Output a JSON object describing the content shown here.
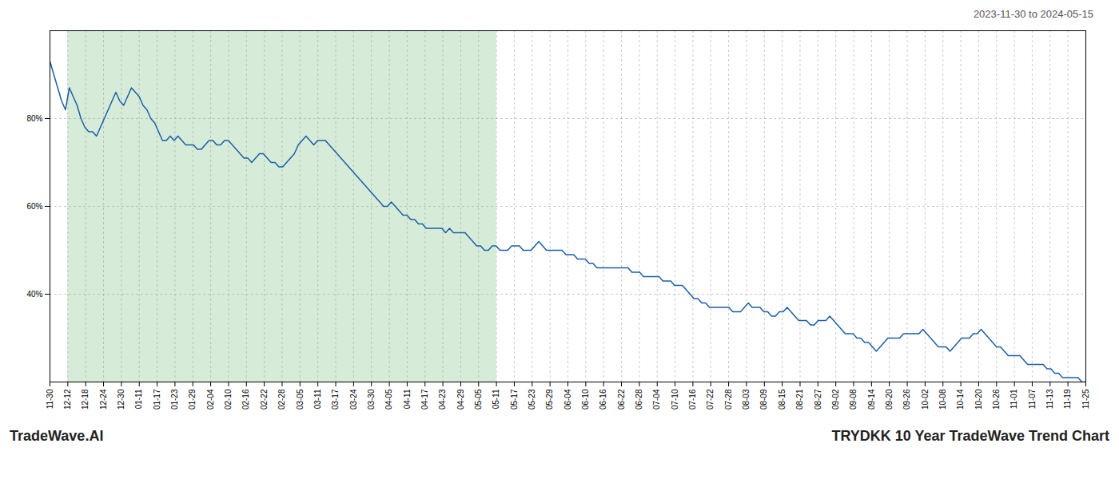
{
  "chart_data": {
    "type": "line",
    "title": "TRYDKK 10 Year TradeWave Trend Chart",
    "subtitle": "2023-11-30 to 2024-05-15",
    "caption": "TradeWave.AI",
    "color": "#1a5fa8",
    "grid": true,
    "ylim": [
      20,
      100
    ],
    "yticks": [
      {
        "value": 40,
        "label": "40%"
      },
      {
        "value": 60,
        "label": "60%"
      },
      {
        "value": 80,
        "label": "80%"
      }
    ],
    "xlim": [
      0,
      267
    ],
    "xticks": [
      {
        "value": 0,
        "label": "11-30"
      },
      {
        "value": 4.6034,
        "label": "12-12"
      },
      {
        "value": 9.2069,
        "label": "12-18"
      },
      {
        "value": 13.8103,
        "label": "12-24"
      },
      {
        "value": 18.4138,
        "label": "12-30"
      },
      {
        "value": 23.0172,
        "label": "01-11"
      },
      {
        "value": 27.6207,
        "label": "01-17"
      },
      {
        "value": 32.2241,
        "label": "01-23"
      },
      {
        "value": 36.8276,
        "label": "01-29"
      },
      {
        "value": 41.431,
        "label": "02-04"
      },
      {
        "value": 46.0345,
        "label": "02-10"
      },
      {
        "value": 50.6379,
        "label": "02-16"
      },
      {
        "value": 55.2414,
        "label": "02-22"
      },
      {
        "value": 59.8448,
        "label": "02-28"
      },
      {
        "value": 64.4483,
        "label": "03-05"
      },
      {
        "value": 69.0517,
        "label": "03-11"
      },
      {
        "value": 73.6552,
        "label": "03-17"
      },
      {
        "value": 78.2586,
        "label": "03-24"
      },
      {
        "value": 82.8621,
        "label": "03-30"
      },
      {
        "value": 87.4655,
        "label": "04-05"
      },
      {
        "value": 92.069,
        "label": "04-11"
      },
      {
        "value": 96.6724,
        "label": "04-17"
      },
      {
        "value": 101.2759,
        "label": "04-23"
      },
      {
        "value": 105.8793,
        "label": "04-29"
      },
      {
        "value": 110.4828,
        "label": "05-05"
      },
      {
        "value": 115.0862,
        "label": "05-11"
      },
      {
        "value": 119.6897,
        "label": "05-17"
      },
      {
        "value": 124.2931,
        "label": "05-23"
      },
      {
        "value": 128.8966,
        "label": "05-29"
      },
      {
        "value": 133.5,
        "label": "06-04"
      },
      {
        "value": 138.1034,
        "label": "06-10"
      },
      {
        "value": 142.7069,
        "label": "06-16"
      },
      {
        "value": 147.3103,
        "label": "06-22"
      },
      {
        "value": 151.9138,
        "label": "06-28"
      },
      {
        "value": 156.5172,
        "label": "07-04"
      },
      {
        "value": 161.1207,
        "label": "07-10"
      },
      {
        "value": 165.7241,
        "label": "07-16"
      },
      {
        "value": 170.3276,
        "label": "07-22"
      },
      {
        "value": 174.931,
        "label": "07-28"
      },
      {
        "value": 179.5345,
        "label": "08-03"
      },
      {
        "value": 184.1379,
        "label": "08-09"
      },
      {
        "value": 188.7414,
        "label": "08-15"
      },
      {
        "value": 193.3448,
        "label": "08-21"
      },
      {
        "value": 197.9483,
        "label": "08-27"
      },
      {
        "value": 202.5517,
        "label": "09-02"
      },
      {
        "value": 207.1552,
        "label": "09-08"
      },
      {
        "value": 211.7586,
        "label": "09-14"
      },
      {
        "value": 216.3621,
        "label": "09-20"
      },
      {
        "value": 220.9655,
        "label": "09-26"
      },
      {
        "value": 225.569,
        "label": "10-02"
      },
      {
        "value": 230.1724,
        "label": "10-08"
      },
      {
        "value": 234.7759,
        "label": "10-14"
      },
      {
        "value": 239.3793,
        "label": "10-20"
      },
      {
        "value": 243.9828,
        "label": "10-26"
      },
      {
        "value": 248.5862,
        "label": "11-01"
      },
      {
        "value": 253.1897,
        "label": "11-07"
      },
      {
        "value": 257.7931,
        "label": "11-13"
      },
      {
        "value": 262.3966,
        "label": "11-19"
      },
      {
        "value": 267,
        "label": "11-25"
      }
    ],
    "shaded": {
      "x": [
        4.6034,
        115.0862
      ],
      "color": "#d6ecd8"
    },
    "x": [
      0,
      1,
      2,
      3,
      4,
      5,
      6,
      7,
      8,
      9,
      10,
      11,
      12,
      13,
      14,
      15,
      16,
      17,
      18,
      19,
      20,
      21,
      22,
      23,
      24,
      25,
      26,
      27,
      28,
      29,
      30,
      31,
      32,
      33,
      34,
      35,
      36,
      37,
      38,
      39,
      40,
      41,
      42,
      43,
      44,
      45,
      46,
      47,
      48,
      49,
      50,
      51,
      52,
      53,
      54,
      55,
      56,
      57,
      58,
      59,
      60,
      61,
      62,
      63,
      64,
      65,
      66,
      67,
      68,
      69,
      70,
      71,
      72,
      73,
      74,
      75,
      76,
      77,
      78,
      79,
      80,
      81,
      82,
      83,
      84,
      85,
      86,
      87,
      88,
      89,
      90,
      91,
      92,
      93,
      94,
      95,
      96,
      97,
      98,
      99,
      100,
      101,
      102,
      103,
      104,
      105,
      106,
      107,
      108,
      109,
      110,
      111,
      112,
      113,
      114,
      115,
      116,
      117,
      118,
      119,
      120,
      121,
      122,
      123,
      124,
      125,
      126,
      127,
      128,
      129,
      130,
      131,
      132,
      133,
      134,
      135,
      136,
      137,
      138,
      139,
      140,
      141,
      142,
      143,
      144,
      145,
      146,
      147,
      148,
      149,
      150,
      151,
      152,
      153,
      154,
      155,
      156,
      157,
      158,
      159,
      160,
      161,
      162,
      163,
      164,
      165,
      166,
      167,
      168,
      169,
      170,
      171,
      172,
      173,
      174,
      175,
      176,
      177,
      178,
      179,
      180,
      181,
      182,
      183,
      184,
      185,
      186,
      187,
      188,
      189,
      190,
      191,
      192,
      193,
      194,
      195,
      196,
      197,
      198,
      199,
      200,
      201,
      202,
      203,
      204,
      205,
      206,
      207,
      208,
      209,
      210,
      211,
      212,
      213,
      214,
      215,
      216,
      217,
      218,
      219,
      220,
      221,
      222,
      223,
      224,
      225,
      226,
      227,
      228,
      229,
      230,
      231,
      232,
      233,
      234,
      235,
      236,
      237,
      238,
      239,
      240,
      241,
      242,
      243,
      244,
      245,
      246,
      247,
      248,
      249,
      250,
      251,
      252,
      253,
      254,
      255,
      256,
      257,
      258,
      259,
      260,
      261,
      262,
      263,
      264,
      265,
      266,
      267
    ],
    "values": [
      93,
      90,
      87,
      84,
      82,
      87,
      85,
      83,
      80,
      78,
      77,
      77,
      76,
      78,
      80,
      82,
      84,
      86,
      84,
      83,
      85,
      87,
      86,
      85,
      83,
      82,
      80,
      79,
      77,
      75,
      75,
      76,
      75,
      76,
      75,
      74,
      74,
      74,
      73,
      73,
      74,
      75,
      75,
      74,
      74,
      75,
      75,
      74,
      73,
      72,
      71,
      71,
      70,
      71,
      72,
      72,
      71,
      70,
      70,
      69,
      69,
      70,
      71,
      72,
      74,
      75,
      76,
      75,
      74,
      75,
      75,
      75,
      74,
      73,
      72,
      71,
      70,
      69,
      68,
      67,
      66,
      65,
      64,
      63,
      62,
      61,
      60,
      60,
      61,
      60,
      59,
      58,
      58,
      57,
      57,
      56,
      56,
      55,
      55,
      55,
      55,
      55,
      54,
      55,
      54,
      54,
      54,
      54,
      53,
      52,
      51,
      51,
      50,
      50,
      51,
      51,
      50,
      50,
      50,
      51,
      51,
      51,
      50,
      50,
      50,
      51,
      52,
      51,
      50,
      50,
      50,
      50,
      50,
      49,
      49,
      49,
      48,
      48,
      48,
      47,
      47,
      46,
      46,
      46,
      46,
      46,
      46,
      46,
      46,
      46,
      45,
      45,
      45,
      44,
      44,
      44,
      44,
      44,
      43,
      43,
      43,
      42,
      42,
      42,
      41,
      40,
      39,
      39,
      38,
      38,
      37,
      37,
      37,
      37,
      37,
      37,
      36,
      36,
      36,
      37,
      38,
      37,
      37,
      37,
      36,
      36,
      35,
      35,
      36,
      36,
      37,
      36,
      35,
      34,
      34,
      34,
      33,
      33,
      34,
      34,
      34,
      35,
      34,
      33,
      32,
      31,
      31,
      31,
      30,
      30,
      29,
      29,
      28,
      27,
      28,
      29,
      30,
      30,
      30,
      30,
      31,
      31,
      31,
      31,
      31,
      32,
      31,
      30,
      29,
      28,
      28,
      28,
      27,
      28,
      29,
      30,
      30,
      30,
      31,
      31,
      32,
      31,
      30,
      29,
      28,
      28,
      27,
      26,
      26,
      26,
      26,
      25,
      24,
      24,
      24,
      24,
      24,
      23,
      23,
      22,
      22,
      21,
      21,
      21,
      21,
      21,
      20,
      20
    ]
  }
}
